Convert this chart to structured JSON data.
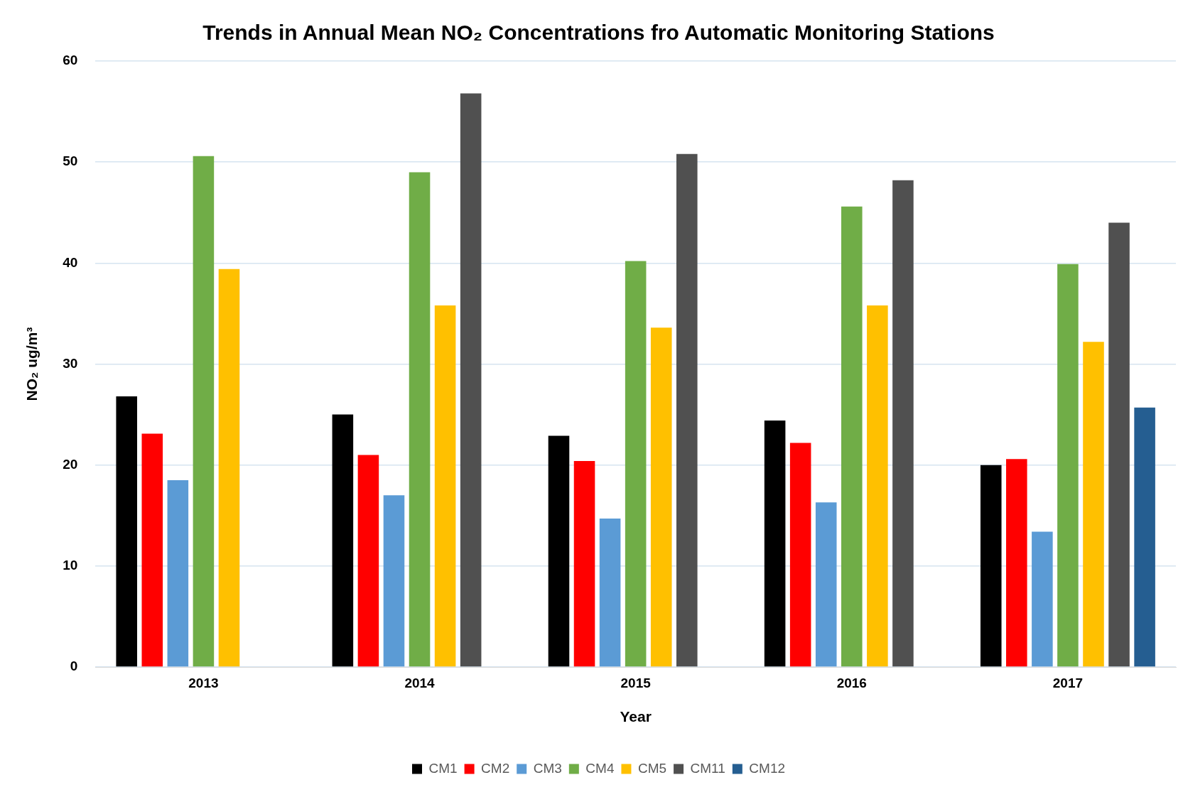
{
  "chart_data": {
    "type": "bar",
    "title": "Trends in Annual Mean NO₂ Concentrations fro Automatic Monitoring Stations",
    "xlabel": "Year",
    "ylabel": "NO₂ ug/m³",
    "categories": [
      "2013",
      "2014",
      "2015",
      "2016",
      "2017"
    ],
    "series": [
      {
        "name": "CM1",
        "color": "#000000",
        "values": [
          26.8,
          25.0,
          22.9,
          24.4,
          20.0
        ]
      },
      {
        "name": "CM2",
        "color": "#ff0000",
        "values": [
          23.1,
          21.0,
          20.4,
          22.2,
          20.6
        ]
      },
      {
        "name": "CM3",
        "color": "#5b9bd5",
        "values": [
          18.5,
          17.0,
          14.7,
          16.3,
          13.4
        ]
      },
      {
        "name": "CM4",
        "color": "#70ad47",
        "values": [
          50.6,
          49.0,
          40.2,
          45.6,
          39.9
        ]
      },
      {
        "name": "CM5",
        "color": "#ffc000",
        "values": [
          39.4,
          35.8,
          33.6,
          35.8,
          32.2
        ]
      },
      {
        "name": "CM11",
        "color": "#505050",
        "values": [
          null,
          56.8,
          50.8,
          48.2,
          44.0
        ]
      },
      {
        "name": "CM12",
        "color": "#255e91",
        "values": [
          null,
          null,
          null,
          null,
          25.7
        ]
      }
    ],
    "ylim": [
      0,
      60
    ],
    "yticks": [
      0,
      10,
      20,
      30,
      40,
      50,
      60
    ],
    "grid": "y",
    "legend": "bottom"
  }
}
